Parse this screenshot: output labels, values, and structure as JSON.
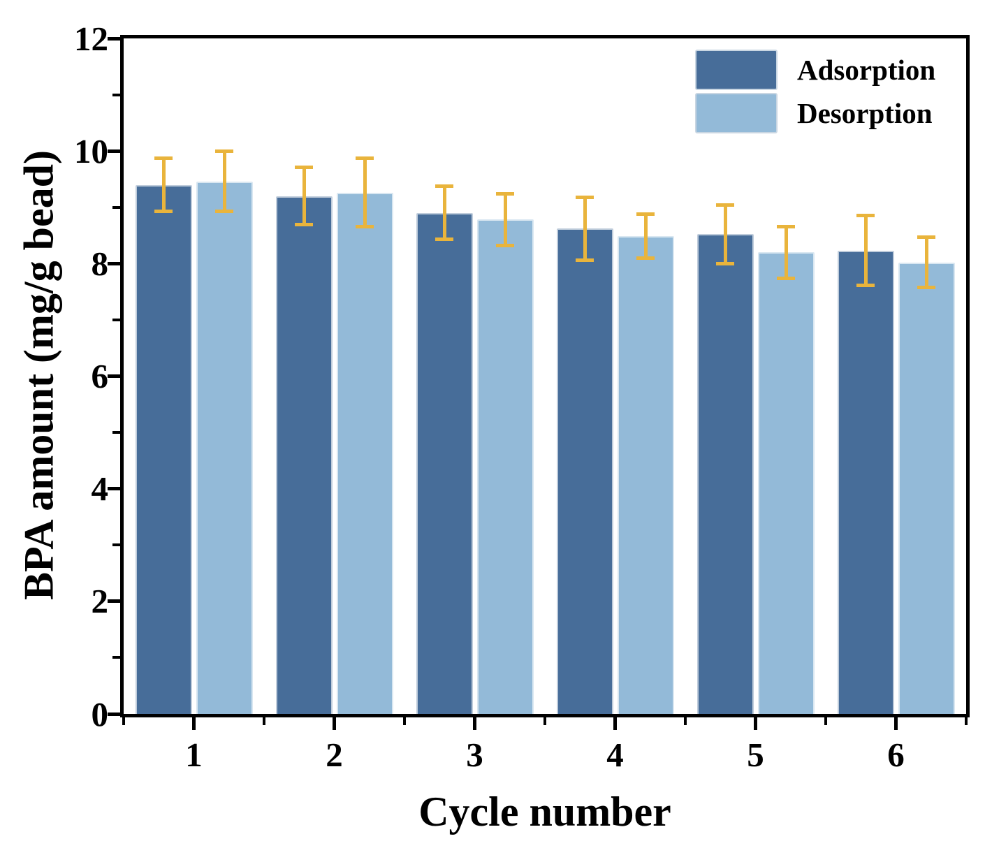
{
  "chart_data": {
    "type": "bar",
    "title": "",
    "xlabel": "Cycle number",
    "ylabel": "BPA amount (mg/g bead)",
    "categories": [
      "1",
      "2",
      "3",
      "4",
      "5",
      "6"
    ],
    "series": [
      {
        "name": "Adsorption",
        "color": "#476D99",
        "values": [
          9.4,
          9.2,
          8.9,
          8.62,
          8.52,
          8.23
        ],
        "errors": [
          0.47,
          0.51,
          0.47,
          0.56,
          0.52,
          0.62
        ]
      },
      {
        "name": "Desorption",
        "color": "#93BAD8",
        "values": [
          9.46,
          9.26,
          8.78,
          8.49,
          8.2,
          8.02
        ],
        "errors": [
          0.53,
          0.61,
          0.46,
          0.39,
          0.46,
          0.45
        ]
      }
    ],
    "error_bar_color": "#E9B43C",
    "axis_color": "#000000",
    "ylim": [
      0,
      12
    ],
    "yticks": [
      0,
      2,
      4,
      6,
      8,
      10,
      12
    ],
    "yticks_minor": [
      1,
      3,
      5,
      7,
      9,
      11
    ],
    "grid": false,
    "legend_position": "top-right-inside"
  }
}
